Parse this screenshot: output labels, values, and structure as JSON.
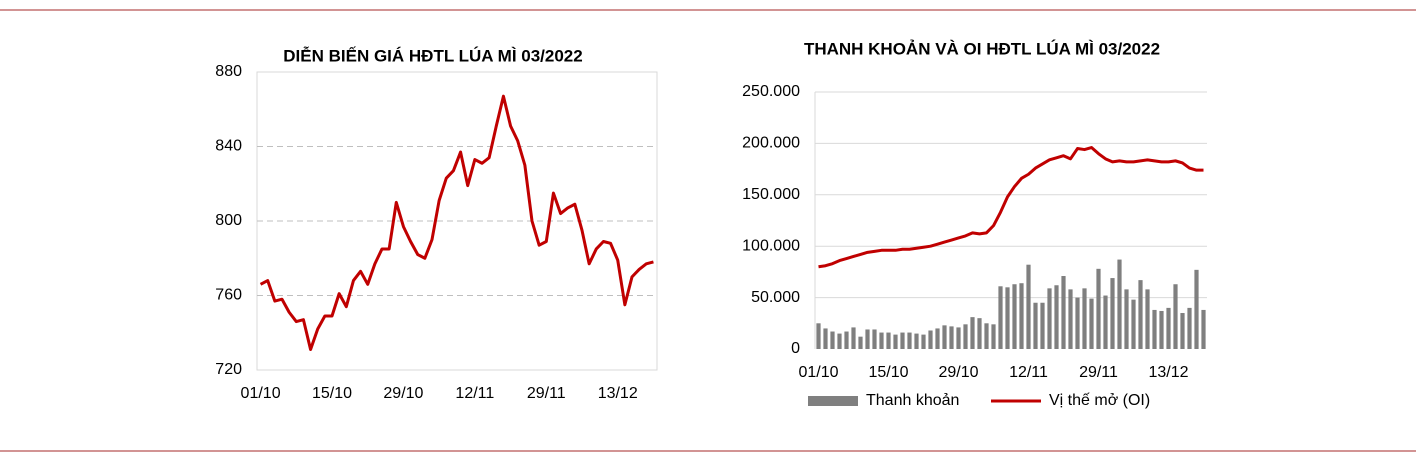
{
  "chart_data": [
    {
      "type": "line",
      "title": "DIỄN BIẾN GIÁ HĐTL LÚA MÌ 03/2022",
      "categories": [
        "01/10",
        null,
        null,
        null,
        null,
        null,
        null,
        null,
        null,
        null,
        "15/10",
        null,
        null,
        null,
        null,
        null,
        null,
        null,
        null,
        null,
        "29/10",
        null,
        null,
        null,
        null,
        null,
        null,
        null,
        null,
        null,
        "12/11",
        null,
        null,
        null,
        null,
        null,
        null,
        null,
        null,
        null,
        "29/11",
        null,
        null,
        null,
        null,
        null,
        null,
        null,
        null,
        null,
        "13/12",
        null,
        null,
        null,
        null,
        null
      ],
      "values": [
        766,
        768,
        757,
        758,
        751,
        746,
        747,
        731,
        742,
        749,
        749,
        761,
        754,
        768,
        773,
        766,
        777,
        785,
        785,
        810,
        797,
        789,
        782,
        780,
        790,
        811,
        823,
        827,
        837,
        819,
        833,
        831,
        834,
        851,
        867,
        851,
        843,
        830,
        800,
        787,
        789,
        815,
        804,
        807,
        809,
        795,
        777,
        785,
        789,
        788,
        779,
        755,
        770,
        774,
        777,
        778
      ],
      "color": "#c00000",
      "ylim": [
        720,
        880
      ],
      "yticks": [
        720,
        760,
        800,
        840,
        880
      ],
      "grid": true
    },
    {
      "type": "combo",
      "title": "THANH KHOẢN VÀ OI HĐTL LÚA MÌ  03/2022",
      "categories": [
        "01/10",
        null,
        null,
        null,
        null,
        null,
        null,
        null,
        null,
        null,
        "15/10",
        null,
        null,
        null,
        null,
        null,
        null,
        null,
        null,
        null,
        "29/10",
        null,
        null,
        null,
        null,
        null,
        null,
        null,
        null,
        null,
        "12/11",
        null,
        null,
        null,
        null,
        null,
        null,
        null,
        null,
        null,
        "29/11",
        null,
        null,
        null,
        null,
        null,
        null,
        null,
        null,
        null,
        "13/12",
        null,
        null,
        null,
        null,
        null
      ],
      "series": [
        {
          "name": "Thanh khoản",
          "type": "bar",
          "color": "#7f7f7f",
          "values": [
            25000,
            20000,
            17000,
            15000,
            17000,
            21000,
            12000,
            19000,
            19000,
            16000,
            16000,
            14000,
            16000,
            16000,
            15000,
            14000,
            18000,
            20000,
            23000,
            22000,
            21000,
            24000,
            31000,
            30000,
            25000,
            24000,
            61000,
            60000,
            63000,
            64000,
            82000,
            45000,
            45000,
            59000,
            62000,
            71000,
            58000,
            50000,
            59000,
            49000,
            78000,
            52000,
            69000,
            87000,
            58000,
            48000,
            67000,
            58000,
            38000,
            37000,
            40000,
            63000,
            35000,
            40000,
            77000,
            38000
          ]
        },
        {
          "name": "Vị thế mở (OI)",
          "type": "line",
          "color": "#c00000",
          "values": [
            80000,
            81000,
            83000,
            86000,
            88000,
            90000,
            92000,
            94000,
            95000,
            96000,
            96000,
            96000,
            97000,
            97000,
            98000,
            99000,
            100000,
            102000,
            104000,
            106000,
            108000,
            110000,
            113000,
            112000,
            113000,
            120000,
            133000,
            148000,
            158000,
            166000,
            170000,
            176000,
            180000,
            184000,
            186000,
            188000,
            185000,
            195000,
            194000,
            196000,
            190000,
            185000,
            182000,
            183000,
            182000,
            182000,
            183000,
            184000,
            183000,
            182000,
            182000,
            183000,
            181000,
            176000,
            174000,
            174000
          ]
        }
      ],
      "ylim": [
        0,
        250000
      ],
      "yticks": [
        0,
        {
          "value": 50000,
          "label": "50.000"
        },
        {
          "value": 100000,
          "label": "100.000"
        },
        {
          "value": 150000,
          "label": "150.000"
        },
        {
          "value": 200000,
          "label": "200.000"
        },
        {
          "value": 250000,
          "label": "250.000"
        }
      ],
      "grid": true,
      "legend": "bottom"
    }
  ]
}
